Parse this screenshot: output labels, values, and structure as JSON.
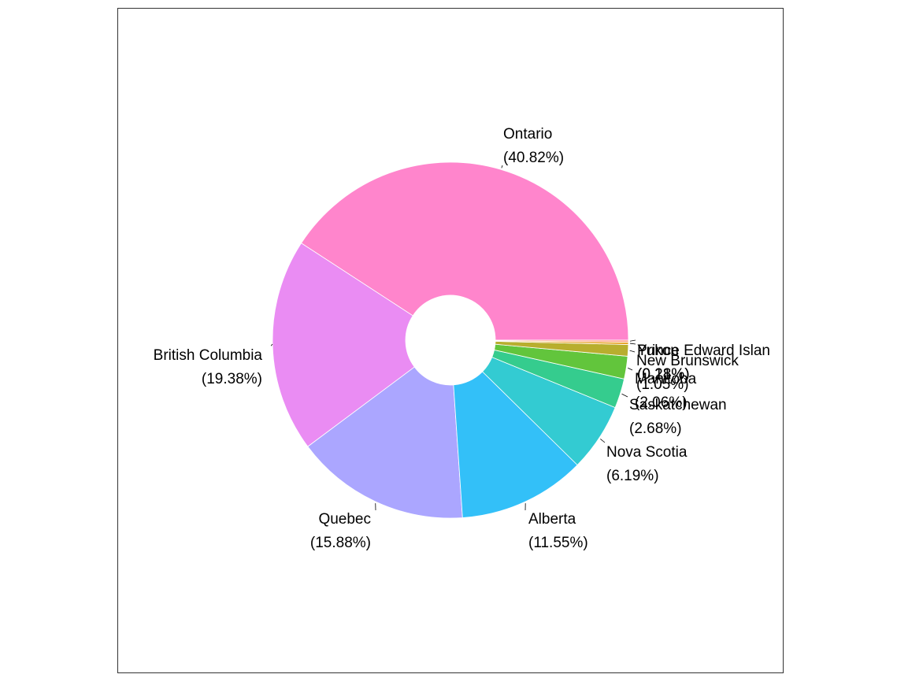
{
  "chart_data": {
    "type": "pie",
    "donut": true,
    "categories": [
      "Ontario",
      "British Columbia",
      "Quebec",
      "Alberta",
      "Nova Scotia",
      "Saskatchewan",
      "Manitoba",
      "New Brunswick",
      "Prince Edward Islan",
      "Yukon"
    ],
    "values": [
      40.82,
      19.38,
      15.88,
      11.55,
      6.19,
      2.68,
      2.06,
      1.05,
      0.21,
      0.18
    ],
    "labels": [
      {
        "name": "Ontario",
        "pct": "(40.82%)"
      },
      {
        "name": "British Columbia",
        "pct": "(19.38%)"
      },
      {
        "name": "Quebec",
        "pct": "(15.88%)"
      },
      {
        "name": "Alberta",
        "pct": "(11.55%)"
      },
      {
        "name": "Nova Scotia",
        "pct": "(6.19%)"
      },
      {
        "name": "Saskatchewan",
        "pct": "(2.68%)"
      },
      {
        "name": "Manitoba",
        "pct": "(2.06%)"
      },
      {
        "name": "New Brunswick",
        "pct": "(1.05%)"
      },
      {
        "name": "Prince Edward Islan",
        "pct": "(0.21%)"
      },
      {
        "name": "Yukon",
        "pct": "(0.18%)"
      }
    ],
    "colors": [
      "#FF85CC",
      "#EA8CF3",
      "#ABA6FF",
      "#33C0F8",
      "#33CBD2",
      "#35CC8E",
      "#62C53C",
      "#B8AE2E",
      "#E8A42B",
      "#FF9E80"
    ],
    "legend": "none",
    "grid": false
  }
}
